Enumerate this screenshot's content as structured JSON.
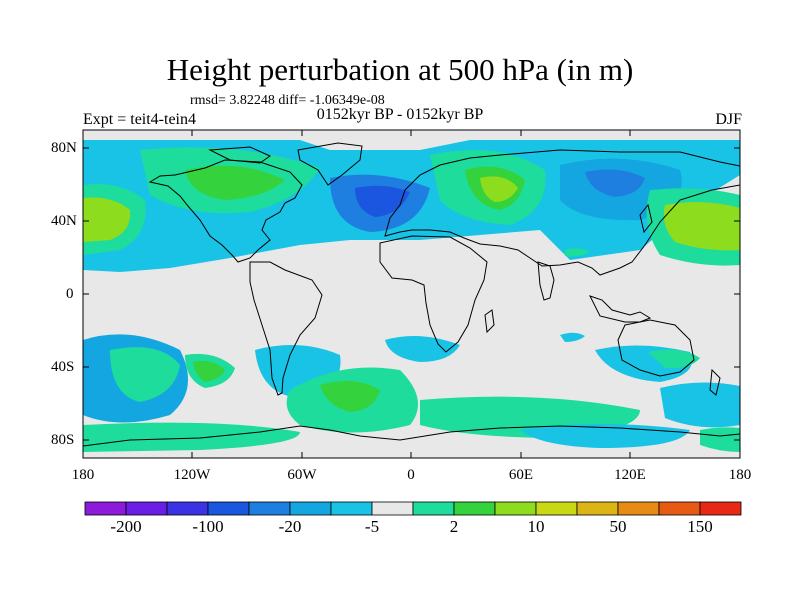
{
  "title": "Height perturbation at 500 hPa (in m)",
  "stats_line": "rmsd= 3.82248 diff= -1.06349e-08",
  "period_line": "0152kyr BP - 0152kyr BP",
  "experiment_label": "Expt = teit4-tein4",
  "season_label": "DJF",
  "map": {
    "projection": "cylindrical equidistant",
    "lat_range": [
      -90,
      90
    ],
    "lon_range": [
      -180,
      180
    ],
    "lat_tick_labels": [
      "80N",
      "40N",
      "0",
      "40S",
      "80S"
    ],
    "lon_tick_labels": [
      "180",
      "120W",
      "60W",
      "0",
      "60E",
      "120E",
      "180"
    ],
    "background_color": "#e8e8e8",
    "coastline_color": "#000000"
  },
  "colorbar": {
    "colors": [
      "#8c1cd9",
      "#6a1ee6",
      "#3b32e6",
      "#1a56e0",
      "#1f7fe0",
      "#14a6e0",
      "#18c3e6",
      "#e8e8e8",
      "#1edc9c",
      "#34d23c",
      "#8edc1e",
      "#c8d814",
      "#dcb414",
      "#e68c14",
      "#e65a14",
      "#e62814"
    ],
    "tick_labels": [
      "-200",
      "-100",
      "-20",
      "-5",
      "2",
      "10",
      "50",
      "150"
    ]
  }
}
